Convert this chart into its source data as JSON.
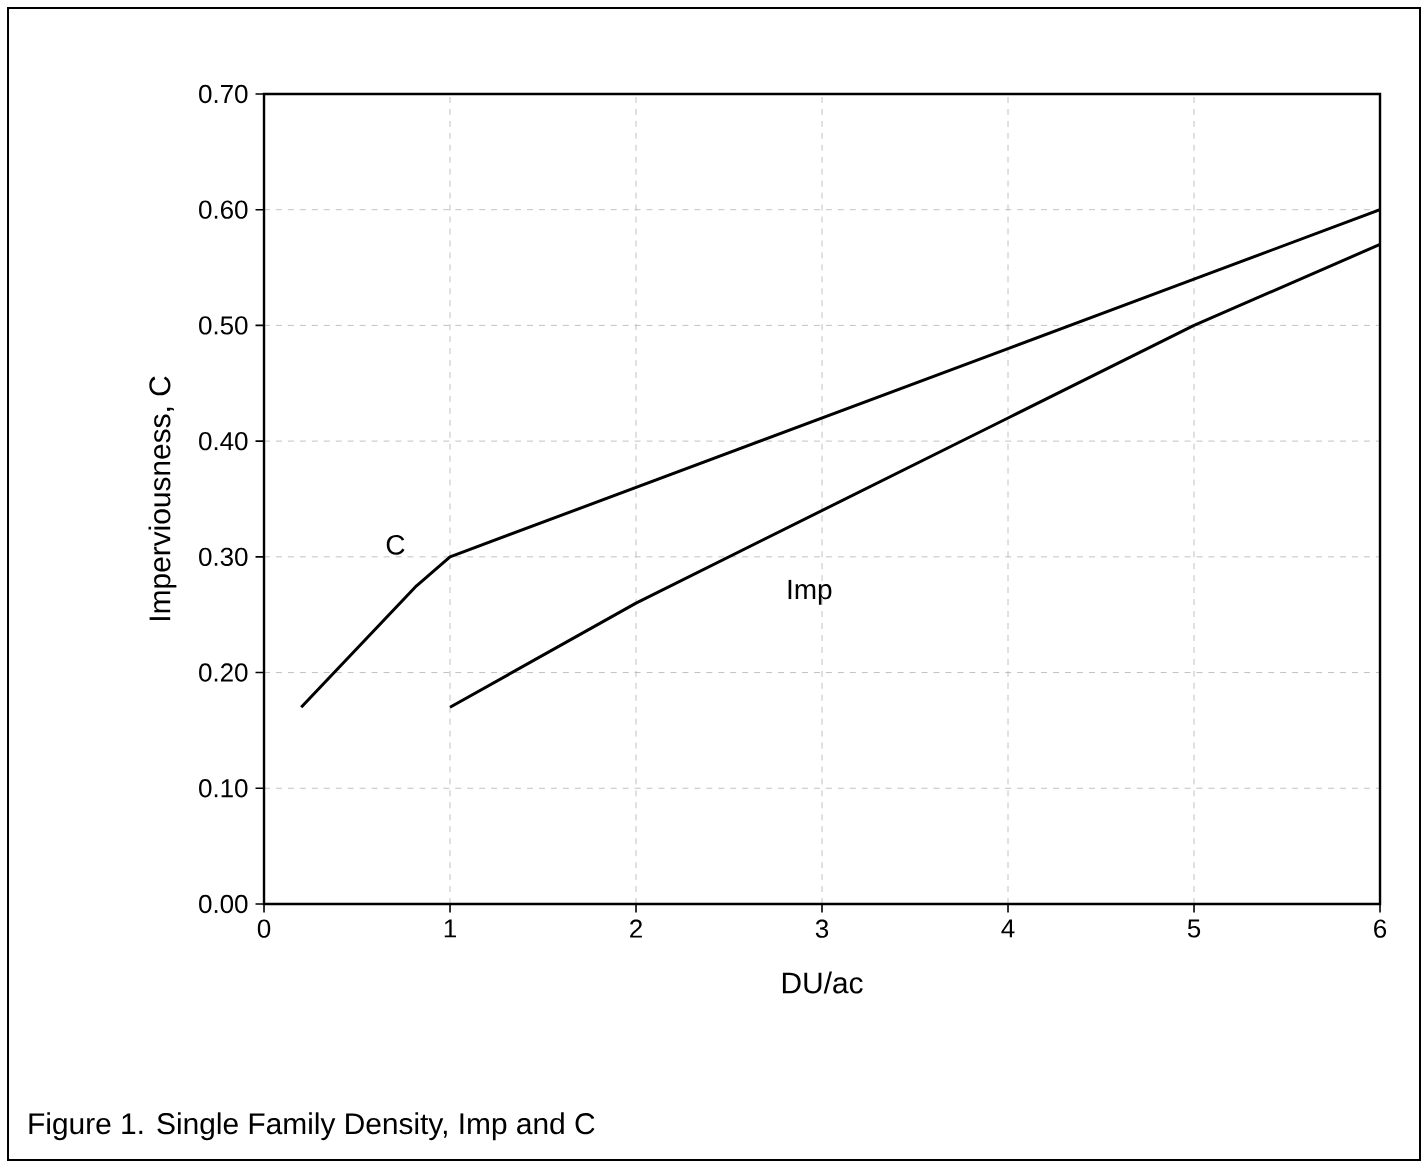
{
  "chart_data": {
    "type": "line",
    "xlabel": "DU/ac",
    "ylabel": "Imperviousness, C",
    "xlim": [
      0,
      6
    ],
    "xticks": [
      0,
      1,
      2,
      3,
      4,
      5,
      6
    ],
    "ylim": [
      0,
      0.7
    ],
    "yticks": [
      {
        "value": 0,
        "label": "0.00"
      },
      {
        "value": 0.1,
        "label": "0.10"
      },
      {
        "value": 0.2,
        "label": "0.20"
      },
      {
        "value": 0.3,
        "label": "0.30"
      },
      {
        "value": 0.4,
        "label": "0.40"
      },
      {
        "value": 0.5,
        "label": "0.50"
      },
      {
        "value": 0.6,
        "label": "0.60"
      },
      {
        "value": 0.7,
        "label": "0.70"
      }
    ],
    "grid": true,
    "marker": "none",
    "line_style": "solid",
    "series": [
      {
        "name": "C",
        "color": "#000000",
        "x": [
          0.2,
          0.82,
          1,
          2,
          3,
          4,
          5,
          6
        ],
        "values": [
          0.17,
          0.275,
          0.3,
          0.36,
          0.42,
          0.48,
          0.54,
          0.6
        ]
      },
      {
        "name": "Imp",
        "color": "#000000",
        "x": [
          1,
          2,
          3,
          4,
          5,
          6
        ],
        "values": [
          0.17,
          0.26,
          0.34,
          0.42,
          0.5,
          0.57
        ]
      }
    ],
    "annotations": [
      "Figure 1. Single Family Density, Imp and C"
    ]
  }
}
